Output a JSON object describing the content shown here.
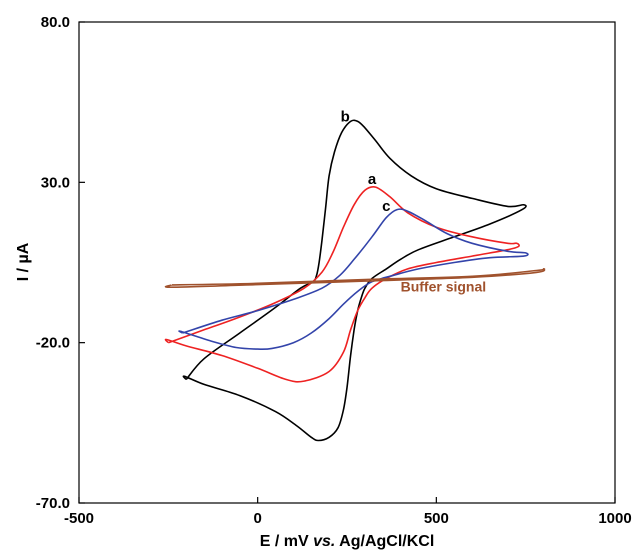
{
  "chart_data": {
    "type": "line",
    "xlabel": {
      "prefix": "E / mV ",
      "italic": "vs.",
      "suffix": " Ag/AgCl/KCl"
    },
    "ylabel": "I / µA",
    "xlim": [
      -500,
      1000
    ],
    "ylim": [
      -70,
      80
    ],
    "x_ticks": [
      {
        "value": -500,
        "label": "-500"
      },
      {
        "value": 0,
        "label": "0"
      },
      {
        "value": 500,
        "label": "500"
      },
      {
        "value": 1000,
        "label": "1000"
      }
    ],
    "y_ticks": [
      {
        "value": 80,
        "label": "80.0"
      },
      {
        "value": 30,
        "label": "30.0"
      },
      {
        "value": -20,
        "label": "-20.0"
      },
      {
        "value": -70,
        "label": "-70.0"
      }
    ],
    "grid": false,
    "legend": "none",
    "series": [
      {
        "name": "b",
        "color": "#000000",
        "label_pos": [
          245,
          49
        ],
        "points": [
          [
            -200,
            -31.5
          ],
          [
            -150,
            -25
          ],
          [
            -50,
            -17
          ],
          [
            50,
            -9
          ],
          [
            120,
            -3
          ],
          [
            155,
            -1
          ],
          [
            165,
            1
          ],
          [
            172,
            5
          ],
          [
            180,
            12
          ],
          [
            190,
            22
          ],
          [
            200,
            32
          ],
          [
            215,
            39.5
          ],
          [
            235,
            45.5
          ],
          [
            260,
            49
          ],
          [
            280,
            49
          ],
          [
            300,
            47
          ],
          [
            330,
            43
          ],
          [
            370,
            37.5
          ],
          [
            430,
            32
          ],
          [
            500,
            28
          ],
          [
            600,
            25
          ],
          [
            700,
            22.5
          ],
          [
            745,
            23
          ],
          [
            740,
            21.5
          ],
          [
            650,
            17
          ],
          [
            550,
            13
          ],
          [
            450,
            9
          ],
          [
            400,
            6
          ],
          [
            360,
            3
          ],
          [
            320,
            0
          ],
          [
            300,
            -3
          ],
          [
            290,
            -6
          ],
          [
            280,
            -10
          ],
          [
            270,
            -16
          ],
          [
            260,
            -24
          ],
          [
            250,
            -34
          ],
          [
            240,
            -41
          ],
          [
            225,
            -46.5
          ],
          [
            200,
            -49.5
          ],
          [
            170,
            -50.5
          ],
          [
            150,
            -49.5
          ],
          [
            110,
            -46
          ],
          [
            50,
            -41.5
          ],
          [
            -50,
            -36.5
          ],
          [
            -150,
            -33
          ],
          [
            -205,
            -30.5
          ],
          [
            -200,
            -31.5
          ]
        ]
      },
      {
        "name": "a",
        "color": "#ee2222",
        "label_pos": [
          320,
          29.5
        ],
        "points": [
          [
            -250,
            -20
          ],
          [
            -150,
            -16
          ],
          [
            -50,
            -12
          ],
          [
            50,
            -7.5
          ],
          [
            130,
            -3
          ],
          [
            180,
            2
          ],
          [
            210,
            8
          ],
          [
            240,
            16
          ],
          [
            270,
            23
          ],
          [
            300,
            27.5
          ],
          [
            330,
            28.5
          ],
          [
            370,
            25.5
          ],
          [
            420,
            20.5
          ],
          [
            500,
            16
          ],
          [
            600,
            13
          ],
          [
            700,
            11
          ],
          [
            725,
            11
          ],
          [
            730,
            10
          ],
          [
            700,
            9
          ],
          [
            600,
            7
          ],
          [
            500,
            5
          ],
          [
            420,
            3
          ],
          [
            360,
            0
          ],
          [
            320,
            -3
          ],
          [
            300,
            -6
          ],
          [
            280,
            -10
          ],
          [
            260,
            -16
          ],
          [
            240,
            -23
          ],
          [
            200,
            -29
          ],
          [
            130,
            -32
          ],
          [
            80,
            -31.5
          ],
          [
            0,
            -28
          ],
          [
            -100,
            -24
          ],
          [
            -200,
            -21
          ],
          [
            -255,
            -19
          ],
          [
            -250,
            -20
          ]
        ]
      },
      {
        "name": "c",
        "color": "#3344aa",
        "label_pos": [
          360,
          21
        ],
        "points": [
          [
            -210,
            -17
          ],
          [
            -100,
            -13
          ],
          [
            0,
            -10
          ],
          [
            100,
            -6.5
          ],
          [
            180,
            -3
          ],
          [
            230,
            1
          ],
          [
            270,
            6
          ],
          [
            320,
            13
          ],
          [
            360,
            19
          ],
          [
            390,
            21.5
          ],
          [
            420,
            21
          ],
          [
            470,
            18
          ],
          [
            530,
            14
          ],
          [
            600,
            11
          ],
          [
            700,
            8.5
          ],
          [
            750,
            8
          ],
          [
            745,
            7
          ],
          [
            650,
            6.5
          ],
          [
            550,
            5
          ],
          [
            450,
            3
          ],
          [
            380,
            1
          ],
          [
            320,
            -1
          ],
          [
            280,
            -4
          ],
          [
            240,
            -8
          ],
          [
            200,
            -12.5
          ],
          [
            150,
            -17
          ],
          [
            100,
            -20
          ],
          [
            40,
            -21.8
          ],
          [
            0,
            -22
          ],
          [
            -60,
            -21.5
          ],
          [
            -130,
            -19.5
          ],
          [
            -215,
            -16.5
          ],
          [
            -210,
            -17
          ]
        ]
      },
      {
        "name": "Buffer signal",
        "color": "#a0522d",
        "label_pos": [
          400,
          -4
        ],
        "points": [
          [
            -240,
            -2
          ],
          [
            0,
            -1.5
          ],
          [
            300,
            -0.3
          ],
          [
            600,
            0.7
          ],
          [
            780,
            2.5
          ],
          [
            800,
            3
          ],
          [
            780,
            1.9
          ],
          [
            600,
            0.4
          ],
          [
            300,
            -0.8
          ],
          [
            0,
            -1.9
          ],
          [
            -240,
            -2.7
          ],
          [
            -240,
            -2
          ]
        ]
      }
    ]
  }
}
